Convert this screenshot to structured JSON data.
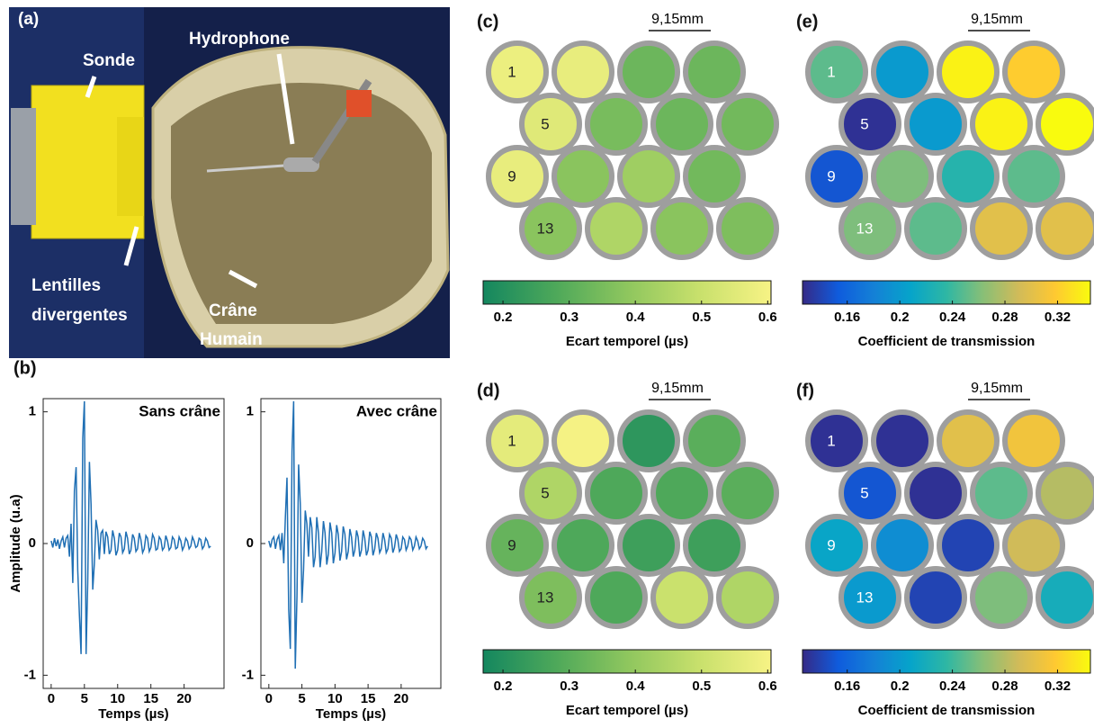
{
  "photo": {
    "panel": "(a)",
    "labels": {
      "sonde": "Sonde",
      "hydrophone": "Hydrophone",
      "lentilles": [
        "Lentilles",
        "divergentes"
      ],
      "crane": [
        "Crâne",
        "Humain"
      ]
    }
  },
  "chart_data": [
    {
      "type": "line",
      "panel": "(b)",
      "title": "Sans crâne",
      "xlabel": "Temps (µs)",
      "ylabel": "Amplitude (u.a)",
      "color": "#1f6fb4",
      "xlim": [
        -1.2,
        26
      ],
      "ylim": [
        -1.1,
        1.1
      ],
      "xticks": [
        0,
        5,
        10,
        15,
        20
      ],
      "yticks": [
        -1,
        0,
        1
      ],
      "x": [
        0,
        0.25,
        0.5,
        0.75,
        1,
        1.25,
        1.5,
        1.75,
        2,
        2.25,
        2.5,
        2.75,
        3,
        3.25,
        3.5,
        3.75,
        4,
        4.25,
        4.5,
        4.75,
        5,
        5.25,
        5.5,
        5.75,
        6,
        6.25,
        6.5,
        6.75,
        7,
        7.25,
        7.5,
        7.75,
        8,
        8.25,
        8.5,
        8.75,
        9,
        9.25,
        9.5,
        9.75,
        10,
        10.25,
        10.5,
        10.75,
        11,
        11.25,
        11.5,
        11.75,
        12,
        12.25,
        12.5,
        12.75,
        13,
        13.25,
        13.5,
        13.75,
        14,
        14.25,
        14.5,
        14.75,
        15,
        15.25,
        15.5,
        15.75,
        16,
        16.25,
        16.5,
        16.75,
        17,
        17.25,
        17.5,
        17.75,
        18,
        18.25,
        18.5,
        18.75,
        19,
        19.25,
        19.5,
        19.75,
        20,
        20.25,
        20.5,
        20.75,
        21,
        21.25,
        21.5,
        21.75,
        22,
        22.25,
        22.5,
        22.75,
        23,
        23.25,
        23.5,
        23.75,
        24
      ],
      "values": [
        0.02,
        -0.03,
        0.04,
        -0.02,
        0.03,
        -0.04,
        0.02,
        0.05,
        -0.03,
        0.04,
        0.06,
        -0.1,
        0.15,
        -0.3,
        0.4,
        0.58,
        -0.2,
        -0.55,
        -0.84,
        0.8,
        1.08,
        -0.84,
        -0.3,
        0.62,
        0.3,
        -0.35,
        -0.15,
        0.18,
        0.1,
        -0.12,
        0.08,
        0.1,
        -0.08,
        0.09,
        0.05,
        -0.08,
        -0.05,
        0.1,
        0.04,
        -0.09,
        -0.05,
        0.08,
        0.05,
        -0.07,
        -0.04,
        0.09,
        0.04,
        -0.08,
        -0.05,
        0.07,
        0.04,
        -0.06,
        -0.04,
        0.08,
        0.03,
        -0.07,
        -0.04,
        0.06,
        0.04,
        -0.06,
        -0.03,
        0.07,
        0.04,
        -0.05,
        -0.04,
        0.05,
        0.03,
        -0.05,
        -0.03,
        0.06,
        0.02,
        -0.05,
        -0.03,
        0.05,
        0.03,
        -0.04,
        -0.03,
        0.05,
        0.02,
        -0.05,
        -0.02,
        0.04,
        0.02,
        -0.04,
        -0.02,
        0.05,
        0.02,
        -0.03,
        -0.02,
        0.04,
        0.03,
        -0.04,
        -0.02,
        0.04,
        0.02,
        -0.03,
        -0.02
      ]
    },
    {
      "type": "line",
      "title": "Avec crâne",
      "xlabel": "Temps (µs)",
      "color": "#1f6fb4",
      "xlim": [
        -1.2,
        26
      ],
      "ylim": [
        -1.1,
        1.1
      ],
      "xticks": [
        0,
        5,
        10,
        15,
        20
      ],
      "yticks": [
        -1,
        0,
        1
      ],
      "x": [
        0,
        0.25,
        0.5,
        0.75,
        1,
        1.25,
        1.5,
        1.75,
        2,
        2.25,
        2.5,
        2.75,
        3,
        3.25,
        3.5,
        3.75,
        4,
        4.25,
        4.5,
        4.75,
        5,
        5.25,
        5.5,
        5.75,
        6,
        6.25,
        6.5,
        6.75,
        7,
        7.25,
        7.5,
        7.75,
        8,
        8.25,
        8.5,
        8.75,
        9,
        9.25,
        9.5,
        9.75,
        10,
        10.25,
        10.5,
        10.75,
        11,
        11.25,
        11.5,
        11.75,
        12,
        12.25,
        12.5,
        12.75,
        13,
        13.25,
        13.5,
        13.75,
        14,
        14.25,
        14.5,
        14.75,
        15,
        15.25,
        15.5,
        15.75,
        16,
        16.25,
        16.5,
        16.75,
        17,
        17.25,
        17.5,
        17.75,
        18,
        18.25,
        18.5,
        18.75,
        19,
        19.25,
        19.5,
        19.75,
        20,
        20.25,
        20.5,
        20.75,
        21,
        21.25,
        21.5,
        21.75,
        22,
        22.25,
        22.5,
        22.75,
        23,
        23.25,
        23.5,
        23.75,
        24
      ],
      "values": [
        0.02,
        -0.03,
        0.03,
        0.05,
        -0.04,
        0.03,
        0.06,
        -0.05,
        0.08,
        -0.15,
        0.2,
        0.5,
        -0.5,
        -0.8,
        0.7,
        1.08,
        -0.95,
        -0.4,
        0.6,
        0.3,
        -0.45,
        -0.2,
        0.25,
        0.15,
        -0.1,
        0.2,
        0.12,
        -0.18,
        -0.1,
        0.2,
        0.08,
        -0.18,
        -0.06,
        0.17,
        0.08,
        -0.16,
        -0.08,
        0.16,
        0.08,
        -0.15,
        -0.07,
        0.14,
        0.07,
        -0.13,
        -0.06,
        0.13,
        0.07,
        -0.12,
        -0.06,
        0.11,
        0.05,
        -0.1,
        -0.05,
        0.1,
        0.05,
        -0.1,
        -0.05,
        0.1,
        0.04,
        -0.09,
        -0.05,
        0.09,
        0.05,
        -0.09,
        -0.04,
        0.08,
        0.04,
        -0.07,
        -0.04,
        0.08,
        0.03,
        -0.07,
        -0.04,
        0.07,
        0.04,
        -0.07,
        -0.03,
        0.07,
        0.03,
        -0.06,
        -0.04,
        0.05,
        0.03,
        -0.05,
        -0.02,
        0.05,
        0.03,
        -0.05,
        -0.02,
        0.05,
        0.02,
        -0.04,
        -0.02,
        0.04,
        0.02,
        -0.04,
        -0.02
      ]
    },
    {
      "type": "hexmap",
      "panel": "(c)",
      "scale_label": "9,15mm",
      "colorbar_label": "Ecart temporel (µs)",
      "label_color": "#222222",
      "xlim": [
        0.17,
        0.605
      ],
      "xticks": [
        0.2,
        0.3,
        0.4,
        0.5,
        0.6
      ],
      "colormap": [
        "#14875f",
        "#4da85a",
        "#8ec65e",
        "#c8e06c",
        "#f7f385"
      ],
      "labels": [
        "1",
        null,
        null,
        null,
        "5",
        null,
        null,
        null,
        "9",
        null,
        null,
        null,
        "13",
        null,
        null,
        null
      ],
      "values": [
        0.58,
        0.57,
        0.33,
        0.33,
        0.55,
        0.35,
        0.33,
        0.34,
        0.57,
        0.38,
        0.42,
        0.34,
        0.38,
        0.45,
        0.38,
        0.36
      ]
    },
    {
      "type": "hexmap",
      "panel": "(e)",
      "scale_label": "9,15mm",
      "colorbar_label": "Coefficient de transmission",
      "label_color": "#ffffff",
      "xlim": [
        0.126,
        0.345
      ],
      "xticks": [
        0.16,
        0.2,
        0.24,
        0.28,
        0.32
      ],
      "colormap": [
        "#352a87",
        "#0f5cdd",
        "#1481d6",
        "#06a4ca",
        "#2eb7a4",
        "#87bf77",
        "#d1bb59",
        "#fec832",
        "#f9fb0e"
      ],
      "labels": [
        "1",
        null,
        null,
        null,
        "5",
        null,
        null,
        null,
        "9",
        null,
        null,
        null,
        "13",
        null,
        null,
        null
      ],
      "values": [
        0.25,
        0.2,
        0.34,
        0.32,
        0.13,
        0.2,
        0.34,
        0.35,
        0.15,
        0.26,
        0.23,
        0.25,
        0.26,
        0.25,
        0.3,
        0.3
      ]
    },
    {
      "type": "hexmap",
      "panel": "(d)",
      "scale_label": "9,15mm",
      "colorbar_label": "Ecart temporel (µs)",
      "label_color": "#222222",
      "xlim": [
        0.17,
        0.605
      ],
      "xticks": [
        0.2,
        0.3,
        0.4,
        0.5,
        0.6
      ],
      "colormap": [
        "#14875f",
        "#4da85a",
        "#8ec65e",
        "#c8e06c",
        "#f7f385"
      ],
      "labels": [
        "1",
        null,
        null,
        null,
        "5",
        null,
        null,
        null,
        "9",
        null,
        null,
        null,
        "13",
        null,
        null,
        null
      ],
      "values": [
        0.56,
        0.6,
        0.22,
        0.3,
        0.45,
        0.28,
        0.28,
        0.3,
        0.32,
        0.28,
        0.25,
        0.25,
        0.36,
        0.28,
        0.5,
        0.45
      ]
    },
    {
      "type": "hexmap",
      "panel": "(f)",
      "scale_label": "9,15mm",
      "colorbar_label": "Coefficient de transmission",
      "label_color": "#ffffff",
      "xlim": [
        0.126,
        0.345
      ],
      "xticks": [
        0.16,
        0.2,
        0.24,
        0.28,
        0.32
      ],
      "colormap": [
        "#352a87",
        "#0f5cdd",
        "#1481d6",
        "#06a4ca",
        "#2eb7a4",
        "#87bf77",
        "#d1bb59",
        "#fec832",
        "#f9fb0e"
      ],
      "labels": [
        "1",
        null,
        null,
        null,
        "5",
        null,
        null,
        null,
        "9",
        null,
        null,
        null,
        "13",
        null,
        null,
        null
      ],
      "values": [
        0.13,
        0.13,
        0.3,
        0.31,
        0.15,
        0.13,
        0.25,
        0.28,
        0.21,
        0.19,
        0.14,
        0.29,
        0.2,
        0.14,
        0.26,
        0.22
      ]
    }
  ]
}
